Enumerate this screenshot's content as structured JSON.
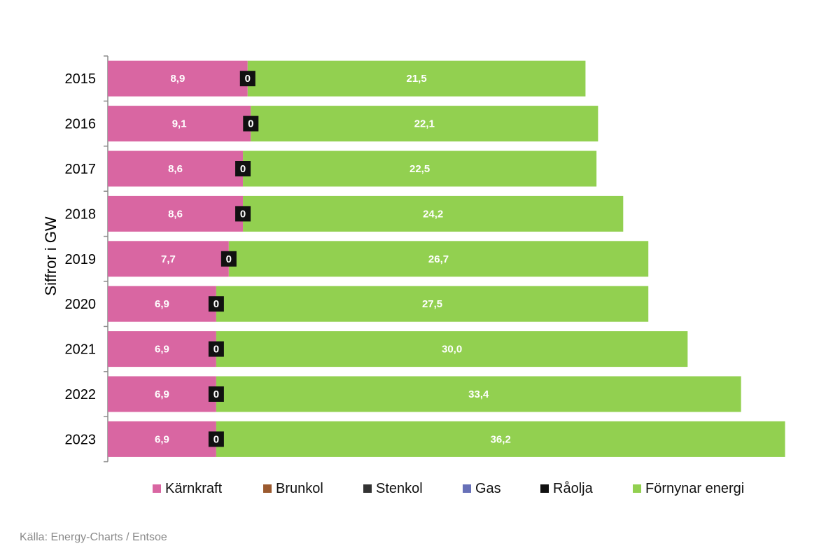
{
  "chart_data": {
    "type": "bar",
    "orientation": "horizontal",
    "stacked": true,
    "ylabel": "Siffror i GW",
    "categories": [
      "2015",
      "2016",
      "2017",
      "2018",
      "2019",
      "2020",
      "2021",
      "2022",
      "2023"
    ],
    "series": [
      {
        "name": "Kärnkraft",
        "color": "#d966a2",
        "values": [
          8.9,
          9.1,
          8.6,
          8.6,
          7.7,
          6.9,
          6.9,
          6.9,
          6.9
        ],
        "labels": [
          "8,9",
          "9,1",
          "8,6",
          "8,6",
          "7,7",
          "6,9",
          "6,9",
          "6,9",
          "6,9"
        ]
      },
      {
        "name": "Brunkol",
        "color": "#9b5a2f",
        "values": [
          0,
          0,
          0,
          0,
          0,
          0,
          0,
          0,
          0
        ]
      },
      {
        "name": "Stenkol",
        "color": "#333333",
        "values": [
          0,
          0,
          0,
          0,
          0,
          0,
          0,
          0,
          0
        ]
      },
      {
        "name": "Gas",
        "color": "#6770b8",
        "values": [
          0,
          0,
          0,
          0,
          0,
          0,
          0,
          0,
          0
        ]
      },
      {
        "name": "Råolja",
        "color": "#111111",
        "values": [
          0,
          0,
          0,
          0,
          0,
          0,
          0,
          0,
          0
        ],
        "labels": [
          "0",
          "0",
          "0",
          "0",
          "0",
          "0",
          "0",
          "0",
          "0"
        ]
      },
      {
        "name": "Förnynar energi",
        "color": "#92d050",
        "values": [
          21.5,
          22.1,
          22.5,
          24.2,
          26.7,
          27.5,
          30.0,
          33.4,
          36.2
        ],
        "labels": [
          "21,5",
          "22,1",
          "22,5",
          "24,2",
          "26,7",
          "27,5",
          "30,0",
          "33,4",
          "36,2"
        ]
      }
    ],
    "xlim": [
      0,
      43.3
    ],
    "legend_position": "bottom",
    "grid": false
  },
  "source": "Källa: Energy-Charts / Entsoe"
}
